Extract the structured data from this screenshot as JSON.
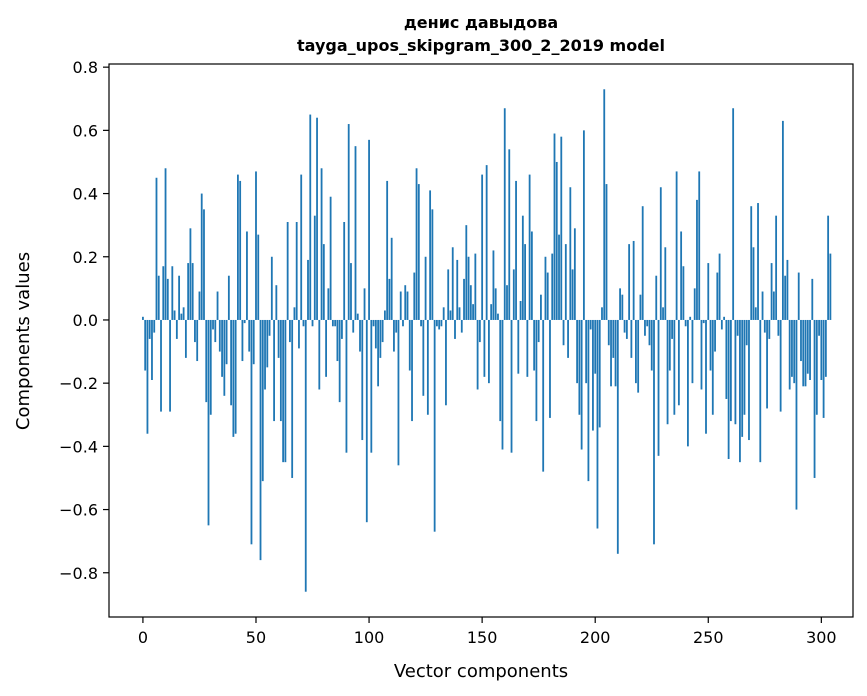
{
  "chart_data": {
    "type": "bar",
    "title_line1": "денис давыдова",
    "title_line2": "tayga_upos_skipgram_300_2_2019 model",
    "xlabel": "Vector components",
    "ylabel": "Components values",
    "xlim": [
      -15,
      314
    ],
    "ylim": [
      -0.94,
      0.81
    ],
    "xticks": [
      0,
      50,
      100,
      150,
      200,
      250,
      300
    ],
    "yticks": [
      -0.8,
      -0.6,
      -0.4,
      -0.2,
      0.0,
      0.2,
      0.4,
      0.6,
      0.8
    ],
    "ytick_labels": [
      "−0.8",
      "−0.6",
      "−0.4",
      "−0.2",
      "0.0",
      "0.2",
      "0.4",
      "0.6",
      "0.8"
    ],
    "grid": false,
    "bar_color": "#1f77b4",
    "values": [
      0.01,
      -0.16,
      -0.36,
      -0.06,
      -0.19,
      -0.04,
      0.45,
      0.14,
      -0.29,
      0.17,
      0.48,
      0.13,
      -0.29,
      0.17,
      0.03,
      -0.06,
      0.14,
      0.02,
      0.04,
      -0.12,
      0.18,
      0.29,
      0.18,
      -0.07,
      -0.13,
      0.09,
      0.4,
      0.35,
      -0.26,
      -0.65,
      -0.3,
      -0.03,
      -0.07,
      0.09,
      -0.1,
      -0.18,
      -0.24,
      -0.14,
      0.14,
      -0.27,
      -0.37,
      -0.36,
      0.46,
      0.44,
      -0.13,
      -0.01,
      0.28,
      -0.1,
      -0.71,
      -0.14,
      0.47,
      0.27,
      -0.76,
      -0.51,
      -0.22,
      -0.15,
      -0.05,
      0.2,
      -0.32,
      0.11,
      -0.12,
      -0.32,
      -0.45,
      -0.45,
      0.31,
      -0.07,
      -0.5,
      0.04,
      0.31,
      -0.09,
      0.46,
      -0.02,
      -0.86,
      0.19,
      0.65,
      -0.02,
      0.33,
      0.64,
      -0.22,
      0.48,
      0.24,
      -0.18,
      0.1,
      0.39,
      -0.02,
      -0.02,
      -0.13,
      -0.26,
      -0.06,
      0.31,
      -0.42,
      0.62,
      0.18,
      -0.04,
      0.55,
      0.02,
      -0.1,
      -0.38,
      0.1,
      -0.64,
      0.57,
      -0.42,
      -0.02,
      -0.09,
      -0.21,
      -0.12,
      -0.07,
      0.03,
      0.44,
      0.13,
      0.26,
      -0.1,
      -0.04,
      -0.46,
      0.09,
      -0.02,
      0.11,
      0.09,
      -0.16,
      -0.32,
      0.15,
      0.48,
      0.43,
      -0.02,
      -0.24,
      0.2,
      -0.3,
      0.41,
      0.35,
      -0.67,
      -0.02,
      -0.03,
      -0.02,
      0.04,
      -0.27,
      0.16,
      0.03,
      0.23,
      -0.06,
      0.19,
      0.04,
      -0.04,
      0.13,
      0.3,
      0.2,
      0.11,
      0.05,
      0.21,
      -0.22,
      -0.07,
      0.46,
      -0.18,
      0.49,
      -0.2,
      0.05,
      0.22,
      0.1,
      0.02,
      -0.32,
      -0.41,
      0.67,
      0.11,
      0.54,
      -0.42,
      0.16,
      0.44,
      -0.17,
      0.06,
      0.33,
      0.24,
      -0.18,
      0.46,
      0.28,
      -0.16,
      -0.32,
      -0.07,
      0.08,
      -0.48,
      0.2,
      0.15,
      -0.31,
      0.21,
      0.59,
      0.5,
      0.27,
      0.58,
      -0.08,
      0.24,
      -0.12,
      0.42,
      0.16,
      0.29,
      -0.2,
      -0.3,
      -0.41,
      0.6,
      -0.2,
      -0.51,
      -0.03,
      -0.35,
      -0.17,
      -0.66,
      -0.34,
      0.04,
      0.73,
      0.43,
      -0.08,
      -0.21,
      -0.12,
      -0.21,
      -0.74,
      0.1,
      0.08,
      -0.04,
      -0.06,
      0.24,
      -0.12,
      0.25,
      -0.2,
      -0.23,
      0.08,
      0.36,
      -0.05,
      -0.02,
      -0.08,
      -0.16,
      -0.71,
      0.14,
      -0.43,
      0.42,
      0.04,
      0.23,
      -0.33,
      -0.16,
      -0.06,
      -0.3,
      0.47,
      -0.27,
      0.28,
      0.17,
      -0.02,
      -0.4,
      0.01,
      -0.2,
      0.1,
      0.38,
      0.47,
      -0.22,
      -0.01,
      -0.36,
      0.18,
      -0.16,
      -0.3,
      -0.1,
      0.15,
      0.21,
      -0.03,
      0.01,
      -0.25,
      -0.44,
      -0.32,
      0.67,
      -0.33,
      -0.05,
      -0.45,
      -0.37,
      -0.3,
      -0.08,
      -0.38,
      0.36,
      0.23,
      0.04,
      0.37,
      -0.45,
      0.09,
      -0.04,
      -0.28,
      -0.06,
      0.18,
      0.09,
      0.33,
      -0.05,
      -0.29,
      0.63,
      0.14,
      0.19,
      -0.22,
      -0.18,
      -0.2,
      -0.6,
      0.15,
      -0.13,
      -0.21,
      -0.21,
      -0.17,
      -0.19,
      0.13,
      -0.5,
      -0.3,
      -0.05,
      -0.19,
      -0.31,
      -0.18,
      0.33,
      0.21
    ]
  }
}
